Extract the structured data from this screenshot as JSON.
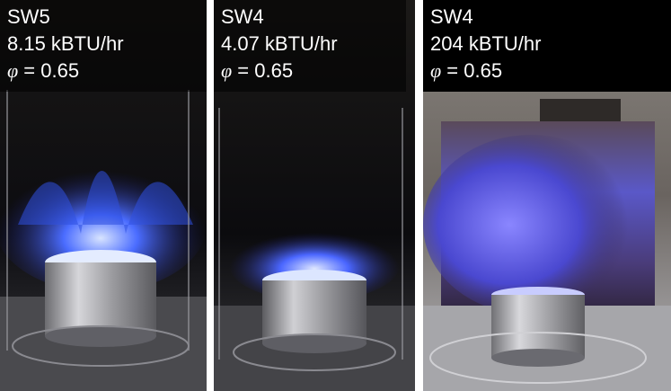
{
  "panels": [
    {
      "burner": "SW5",
      "power": "8.15 kBTU/hr",
      "phi_symbol": "φ",
      "phi_value": "= 0.65"
    },
    {
      "burner": "SW4",
      "power": "4.07 kBTU/hr",
      "phi_symbol": "φ",
      "phi_value": "= 0.65"
    },
    {
      "burner": "SW4",
      "power": "204 kBTU/hr",
      "phi_symbol": "φ",
      "phi_value": "= 0.65"
    }
  ]
}
